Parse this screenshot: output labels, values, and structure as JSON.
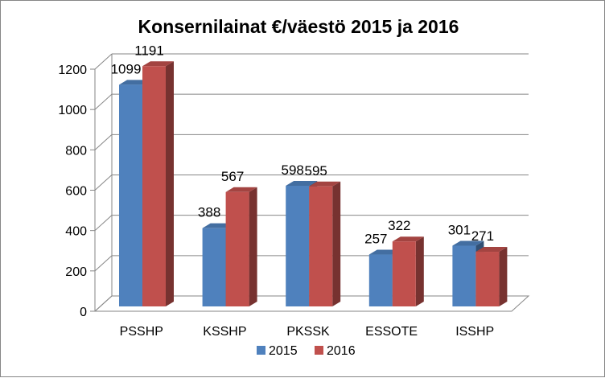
{
  "chart_data": {
    "type": "bar",
    "title": "Konsernilainat €/väestö 2015 ja 2016",
    "categories": [
      "PSSHP",
      "KSSHP",
      "PKSSK",
      "ESSOTE",
      "ISSHP"
    ],
    "series": [
      {
        "name": "2015",
        "values": [
          1099,
          388,
          598,
          257,
          301
        ],
        "color": "#4F81BD"
      },
      {
        "name": "2016",
        "values": [
          1191,
          567,
          595,
          322,
          271
        ],
        "color": "#C0504D"
      }
    ],
    "y_ticks": [
      "0",
      "200",
      "400",
      "600",
      "800",
      "1000",
      "1200"
    ],
    "y_tick_values": [
      0,
      200,
      400,
      600,
      800,
      1000,
      1200
    ],
    "ylim": [
      0,
      1200
    ],
    "three_d": true,
    "grid": true,
    "legend_position": "bottom"
  }
}
